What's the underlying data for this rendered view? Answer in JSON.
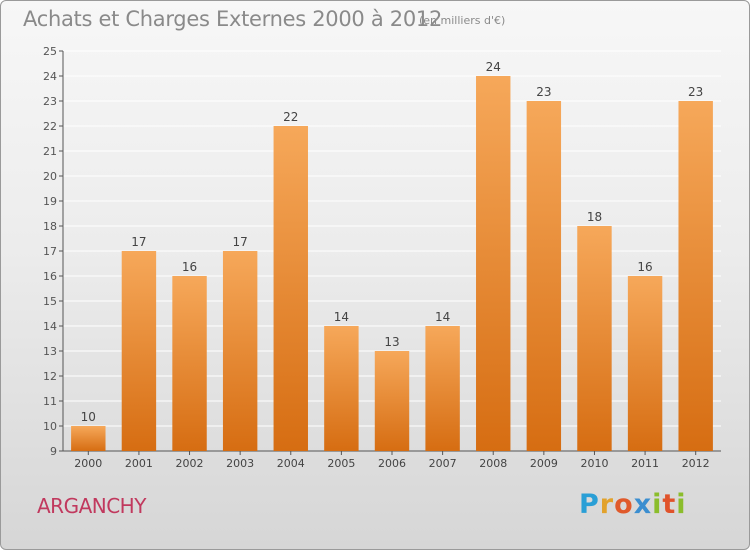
{
  "header": {
    "title": "Achats et Charges Externes 2000 à 2012",
    "subtitle": "(en milliers d'€)"
  },
  "footer": {
    "commune": "ARGANCHY",
    "brand_letters": [
      "P",
      "r",
      "o",
      "x",
      "i",
      "t",
      "i"
    ],
    "brand_colors": [
      "#2a9fd6",
      "#e2a22b",
      "#e05a2b",
      "#3b8ed0",
      "#8bbd2c",
      "#e0532b",
      "#8bbd2c"
    ]
  },
  "chart_data": {
    "type": "bar",
    "title": "Achats et Charges Externes 2000 à 2012",
    "subtitle": "(en milliers d'€)",
    "categories": [
      "2000",
      "2001",
      "2002",
      "2003",
      "2004",
      "2005",
      "2006",
      "2007",
      "2008",
      "2009",
      "2010",
      "2011",
      "2012"
    ],
    "values": [
      10,
      17,
      16,
      17,
      22,
      14,
      13,
      14,
      24,
      23,
      18,
      16,
      23
    ],
    "data_labels": [
      "10",
      "17",
      "16",
      "17",
      "22",
      "14",
      "13",
      "14",
      "24",
      "23",
      "18",
      "16",
      "23"
    ],
    "ylim": [
      9,
      25
    ],
    "y_ticks": [
      "9",
      "10",
      "11",
      "12",
      "13",
      "14",
      "15",
      "16",
      "17",
      "18",
      "19",
      "20",
      "21",
      "22",
      "23",
      "24",
      "25"
    ],
    "grid": true,
    "bar_color_top": "#f6a85a",
    "bar_color_bottom": "#d66d12",
    "grid_color": "#ffffff",
    "legend": "none"
  }
}
